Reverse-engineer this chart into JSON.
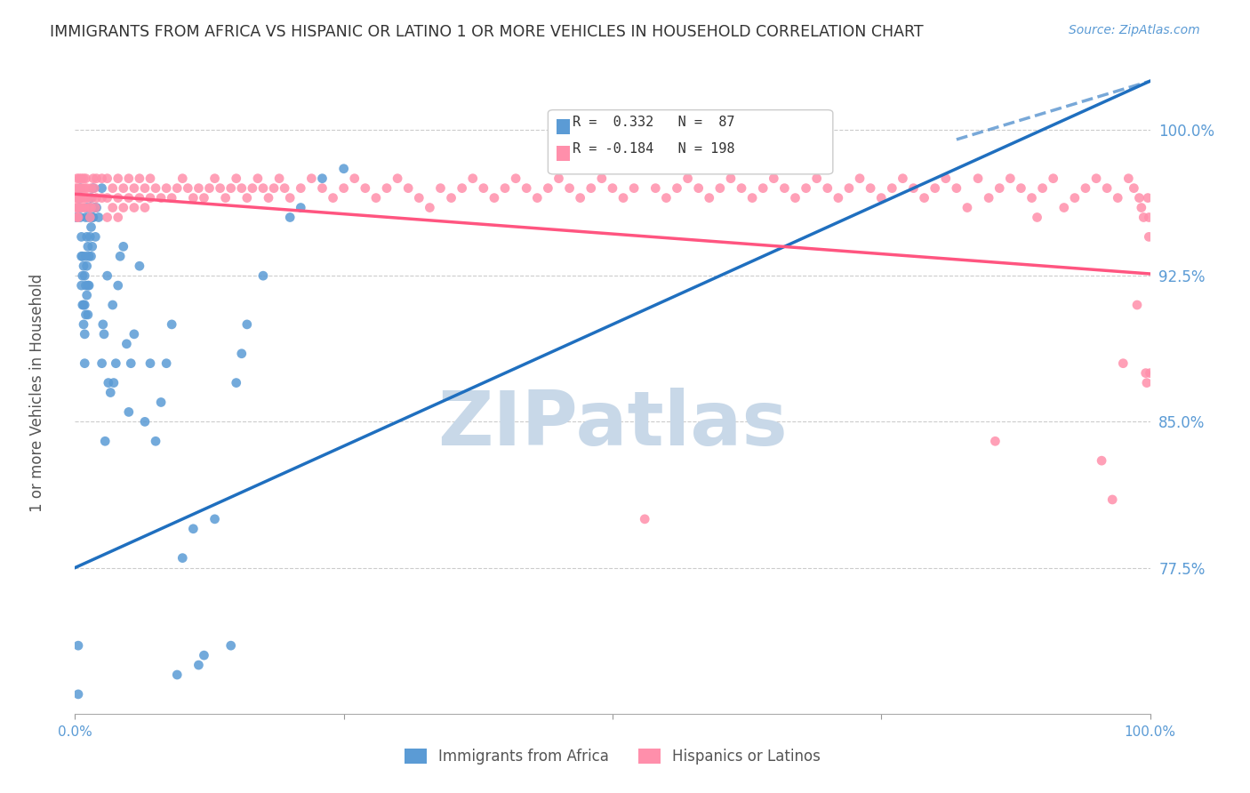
{
  "title": "IMMIGRANTS FROM AFRICA VS HISPANIC OR LATINO 1 OR MORE VEHICLES IN HOUSEHOLD CORRELATION CHART",
  "source": "Source: ZipAtlas.com",
  "ylabel": "1 or more Vehicles in Household",
  "ytick_labels": [
    "77.5%",
    "85.0%",
    "92.5%",
    "100.0%"
  ],
  "ytick_values": [
    0.775,
    0.85,
    0.925,
    1.0
  ],
  "xlim": [
    0.0,
    1.0
  ],
  "ylim": [
    0.7,
    1.03
  ],
  "legend_blue_label": "Immigrants from Africa",
  "legend_pink_label": "Hispanics or Latinos",
  "R_blue": 0.332,
  "N_blue": 87,
  "R_pink": -0.184,
  "N_pink": 198,
  "blue_color": "#5B9BD5",
  "pink_color": "#FF8FAB",
  "blue_line_color": "#1F6FBF",
  "pink_line_color": "#FF5580",
  "watermark": "ZIPatlas",
  "watermark_color": "#C8D8E8",
  "title_color": "#333333",
  "source_color": "#5B9BD5",
  "ytick_color": "#5B9BD5",
  "blue_scatter": [
    [
      0.001,
      0.955
    ],
    [
      0.003,
      0.71
    ],
    [
      0.003,
      0.735
    ],
    [
      0.004,
      0.96
    ],
    [
      0.005,
      0.965
    ],
    [
      0.005,
      0.97
    ],
    [
      0.005,
      0.955
    ],
    [
      0.006,
      0.945
    ],
    [
      0.006,
      0.935
    ],
    [
      0.006,
      0.92
    ],
    [
      0.007,
      0.935
    ],
    [
      0.007,
      0.925
    ],
    [
      0.007,
      0.91
    ],
    [
      0.008,
      0.93
    ],
    [
      0.008,
      0.91
    ],
    [
      0.008,
      0.9
    ],
    [
      0.009,
      0.925
    ],
    [
      0.009,
      0.91
    ],
    [
      0.009,
      0.895
    ],
    [
      0.009,
      0.88
    ],
    [
      0.01,
      0.955
    ],
    [
      0.01,
      0.935
    ],
    [
      0.01,
      0.92
    ],
    [
      0.01,
      0.905
    ],
    [
      0.011,
      0.96
    ],
    [
      0.011,
      0.945
    ],
    [
      0.011,
      0.93
    ],
    [
      0.011,
      0.915
    ],
    [
      0.012,
      0.94
    ],
    [
      0.012,
      0.92
    ],
    [
      0.012,
      0.905
    ],
    [
      0.013,
      0.955
    ],
    [
      0.013,
      0.935
    ],
    [
      0.013,
      0.92
    ],
    [
      0.014,
      0.96
    ],
    [
      0.014,
      0.945
    ],
    [
      0.015,
      0.965
    ],
    [
      0.015,
      0.95
    ],
    [
      0.015,
      0.935
    ],
    [
      0.016,
      0.955
    ],
    [
      0.016,
      0.94
    ],
    [
      0.017,
      0.97
    ],
    [
      0.017,
      0.955
    ],
    [
      0.018,
      0.96
    ],
    [
      0.019,
      0.945
    ],
    [
      0.02,
      0.96
    ],
    [
      0.022,
      0.955
    ],
    [
      0.025,
      0.97
    ],
    [
      0.025,
      0.88
    ],
    [
      0.026,
      0.9
    ],
    [
      0.027,
      0.895
    ],
    [
      0.028,
      0.84
    ],
    [
      0.03,
      0.925
    ],
    [
      0.031,
      0.87
    ],
    [
      0.033,
      0.865
    ],
    [
      0.035,
      0.91
    ],
    [
      0.036,
      0.87
    ],
    [
      0.038,
      0.88
    ],
    [
      0.04,
      0.92
    ],
    [
      0.042,
      0.935
    ],
    [
      0.045,
      0.94
    ],
    [
      0.048,
      0.89
    ],
    [
      0.05,
      0.855
    ],
    [
      0.052,
      0.88
    ],
    [
      0.055,
      0.895
    ],
    [
      0.06,
      0.93
    ],
    [
      0.065,
      0.85
    ],
    [
      0.07,
      0.88
    ],
    [
      0.075,
      0.84
    ],
    [
      0.08,
      0.86
    ],
    [
      0.085,
      0.88
    ],
    [
      0.09,
      0.9
    ],
    [
      0.095,
      0.72
    ],
    [
      0.1,
      0.78
    ],
    [
      0.11,
      0.795
    ],
    [
      0.115,
      0.725
    ],
    [
      0.12,
      0.73
    ],
    [
      0.13,
      0.8
    ],
    [
      0.145,
      0.735
    ],
    [
      0.15,
      0.87
    ],
    [
      0.155,
      0.885
    ],
    [
      0.16,
      0.9
    ],
    [
      0.175,
      0.925
    ],
    [
      0.2,
      0.955
    ],
    [
      0.21,
      0.96
    ],
    [
      0.23,
      0.975
    ],
    [
      0.25,
      0.98
    ]
  ],
  "pink_scatter": [
    [
      0.001,
      0.97
    ],
    [
      0.001,
      0.965
    ],
    [
      0.001,
      0.96
    ],
    [
      0.002,
      0.975
    ],
    [
      0.002,
      0.965
    ],
    [
      0.002,
      0.96
    ],
    [
      0.002,
      0.955
    ],
    [
      0.003,
      0.97
    ],
    [
      0.003,
      0.965
    ],
    [
      0.003,
      0.96
    ],
    [
      0.003,
      0.955
    ],
    [
      0.004,
      0.975
    ],
    [
      0.004,
      0.965
    ],
    [
      0.005,
      0.97
    ],
    [
      0.005,
      0.965
    ],
    [
      0.005,
      0.96
    ],
    [
      0.006,
      0.975
    ],
    [
      0.006,
      0.965
    ],
    [
      0.007,
      0.97
    ],
    [
      0.007,
      0.96
    ],
    [
      0.008,
      0.975
    ],
    [
      0.008,
      0.965
    ],
    [
      0.009,
      0.97
    ],
    [
      0.009,
      0.96
    ],
    [
      0.01,
      0.975
    ],
    [
      0.01,
      0.965
    ],
    [
      0.011,
      0.97
    ],
    [
      0.012,
      0.965
    ],
    [
      0.013,
      0.96
    ],
    [
      0.014,
      0.955
    ],
    [
      0.015,
      0.97
    ],
    [
      0.015,
      0.96
    ],
    [
      0.016,
      0.965
    ],
    [
      0.017,
      0.975
    ],
    [
      0.018,
      0.97
    ],
    [
      0.019,
      0.96
    ],
    [
      0.02,
      0.975
    ],
    [
      0.02,
      0.965
    ],
    [
      0.025,
      0.975
    ],
    [
      0.025,
      0.965
    ],
    [
      0.03,
      0.975
    ],
    [
      0.03,
      0.965
    ],
    [
      0.03,
      0.955
    ],
    [
      0.035,
      0.97
    ],
    [
      0.035,
      0.96
    ],
    [
      0.04,
      0.975
    ],
    [
      0.04,
      0.965
    ],
    [
      0.04,
      0.955
    ],
    [
      0.045,
      0.97
    ],
    [
      0.045,
      0.96
    ],
    [
      0.05,
      0.975
    ],
    [
      0.05,
      0.965
    ],
    [
      0.055,
      0.97
    ],
    [
      0.055,
      0.96
    ],
    [
      0.06,
      0.975
    ],
    [
      0.06,
      0.965
    ],
    [
      0.065,
      0.97
    ],
    [
      0.065,
      0.96
    ],
    [
      0.07,
      0.975
    ],
    [
      0.07,
      0.965
    ],
    [
      0.075,
      0.97
    ],
    [
      0.08,
      0.965
    ],
    [
      0.085,
      0.97
    ],
    [
      0.09,
      0.965
    ],
    [
      0.095,
      0.97
    ],
    [
      0.1,
      0.975
    ],
    [
      0.105,
      0.97
    ],
    [
      0.11,
      0.965
    ],
    [
      0.115,
      0.97
    ],
    [
      0.12,
      0.965
    ],
    [
      0.125,
      0.97
    ],
    [
      0.13,
      0.975
    ],
    [
      0.135,
      0.97
    ],
    [
      0.14,
      0.965
    ],
    [
      0.145,
      0.97
    ],
    [
      0.15,
      0.975
    ],
    [
      0.155,
      0.97
    ],
    [
      0.16,
      0.965
    ],
    [
      0.165,
      0.97
    ],
    [
      0.17,
      0.975
    ],
    [
      0.175,
      0.97
    ],
    [
      0.18,
      0.965
    ],
    [
      0.185,
      0.97
    ],
    [
      0.19,
      0.975
    ],
    [
      0.195,
      0.97
    ],
    [
      0.2,
      0.965
    ],
    [
      0.21,
      0.97
    ],
    [
      0.22,
      0.975
    ],
    [
      0.23,
      0.97
    ],
    [
      0.24,
      0.965
    ],
    [
      0.25,
      0.97
    ],
    [
      0.26,
      0.975
    ],
    [
      0.27,
      0.97
    ],
    [
      0.28,
      0.965
    ],
    [
      0.29,
      0.97
    ],
    [
      0.3,
      0.975
    ],
    [
      0.31,
      0.97
    ],
    [
      0.32,
      0.965
    ],
    [
      0.33,
      0.96
    ],
    [
      0.34,
      0.97
    ],
    [
      0.35,
      0.965
    ],
    [
      0.36,
      0.97
    ],
    [
      0.37,
      0.975
    ],
    [
      0.38,
      0.97
    ],
    [
      0.39,
      0.965
    ],
    [
      0.4,
      0.97
    ],
    [
      0.41,
      0.975
    ],
    [
      0.42,
      0.97
    ],
    [
      0.43,
      0.965
    ],
    [
      0.44,
      0.97
    ],
    [
      0.45,
      0.975
    ],
    [
      0.46,
      0.97
    ],
    [
      0.47,
      0.965
    ],
    [
      0.48,
      0.97
    ],
    [
      0.49,
      0.975
    ],
    [
      0.5,
      0.97
    ],
    [
      0.51,
      0.965
    ],
    [
      0.52,
      0.97
    ],
    [
      0.53,
      0.8
    ],
    [
      0.54,
      0.97
    ],
    [
      0.55,
      0.965
    ],
    [
      0.56,
      0.97
    ],
    [
      0.57,
      0.975
    ],
    [
      0.58,
      0.97
    ],
    [
      0.59,
      0.965
    ],
    [
      0.6,
      0.97
    ],
    [
      0.61,
      0.975
    ],
    [
      0.62,
      0.97
    ],
    [
      0.63,
      0.965
    ],
    [
      0.64,
      0.97
    ],
    [
      0.65,
      0.975
    ],
    [
      0.66,
      0.97
    ],
    [
      0.67,
      0.965
    ],
    [
      0.68,
      0.97
    ],
    [
      0.69,
      0.975
    ],
    [
      0.7,
      0.97
    ],
    [
      0.71,
      0.965
    ],
    [
      0.72,
      0.97
    ],
    [
      0.73,
      0.975
    ],
    [
      0.74,
      0.97
    ],
    [
      0.75,
      0.965
    ],
    [
      0.76,
      0.97
    ],
    [
      0.77,
      0.975
    ],
    [
      0.78,
      0.97
    ],
    [
      0.79,
      0.965
    ],
    [
      0.8,
      0.97
    ],
    [
      0.81,
      0.975
    ],
    [
      0.82,
      0.97
    ],
    [
      0.83,
      0.96
    ],
    [
      0.84,
      0.975
    ],
    [
      0.85,
      0.965
    ],
    [
      0.856,
      0.84
    ],
    [
      0.86,
      0.97
    ],
    [
      0.87,
      0.975
    ],
    [
      0.88,
      0.97
    ],
    [
      0.89,
      0.965
    ],
    [
      0.895,
      0.955
    ],
    [
      0.9,
      0.97
    ],
    [
      0.91,
      0.975
    ],
    [
      0.92,
      0.96
    ],
    [
      0.93,
      0.965
    ],
    [
      0.94,
      0.97
    ],
    [
      0.95,
      0.975
    ],
    [
      0.955,
      0.83
    ],
    [
      0.96,
      0.97
    ],
    [
      0.965,
      0.81
    ],
    [
      0.97,
      0.965
    ],
    [
      0.975,
      0.88
    ],
    [
      0.98,
      0.975
    ],
    [
      0.985,
      0.97
    ],
    [
      0.988,
      0.91
    ],
    [
      0.99,
      0.965
    ],
    [
      0.992,
      0.96
    ],
    [
      0.994,
      0.955
    ],
    [
      0.996,
      0.875
    ],
    [
      0.997,
      0.87
    ],
    [
      0.998,
      0.965
    ],
    [
      0.999,
      0.955
    ],
    [
      0.999,
      0.945
    ],
    [
      1.0,
      0.875
    ]
  ],
  "blue_line": [
    [
      0.0,
      0.775
    ],
    [
      1.0,
      1.025
    ]
  ],
  "blue_line_dashed": [
    [
      0.82,
      0.995
    ],
    [
      1.0,
      1.025
    ]
  ],
  "pink_line": [
    [
      0.0,
      0.967
    ],
    [
      1.0,
      0.926
    ]
  ]
}
